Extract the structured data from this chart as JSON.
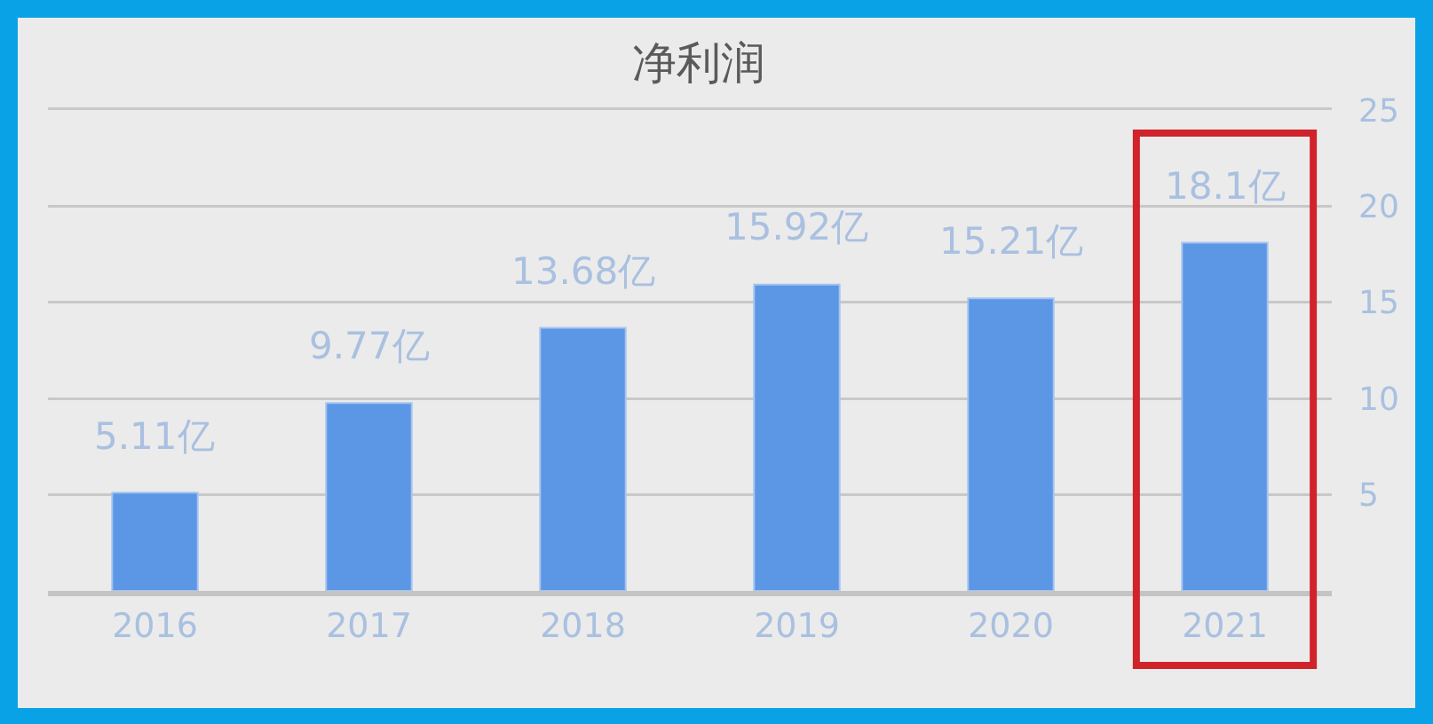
{
  "chart_data": {
    "type": "bar",
    "title": "净利润",
    "categories": [
      "2016",
      "2017",
      "2018",
      "2019",
      "2020",
      "2021"
    ],
    "values": [
      5.11,
      9.77,
      13.68,
      15.92,
      15.21,
      18.1
    ],
    "value_labels": [
      "5.11亿",
      "9.77亿",
      "13.68亿",
      "15.92亿",
      "15.21亿",
      "18.1亿"
    ],
    "color": "#5b97e5",
    "ylim": [
      0,
      25
    ],
    "yticks": [
      {
        "value": 0,
        "label": null
      },
      5,
      10,
      15,
      20,
      25
    ],
    "grid": "y"
  }
}
